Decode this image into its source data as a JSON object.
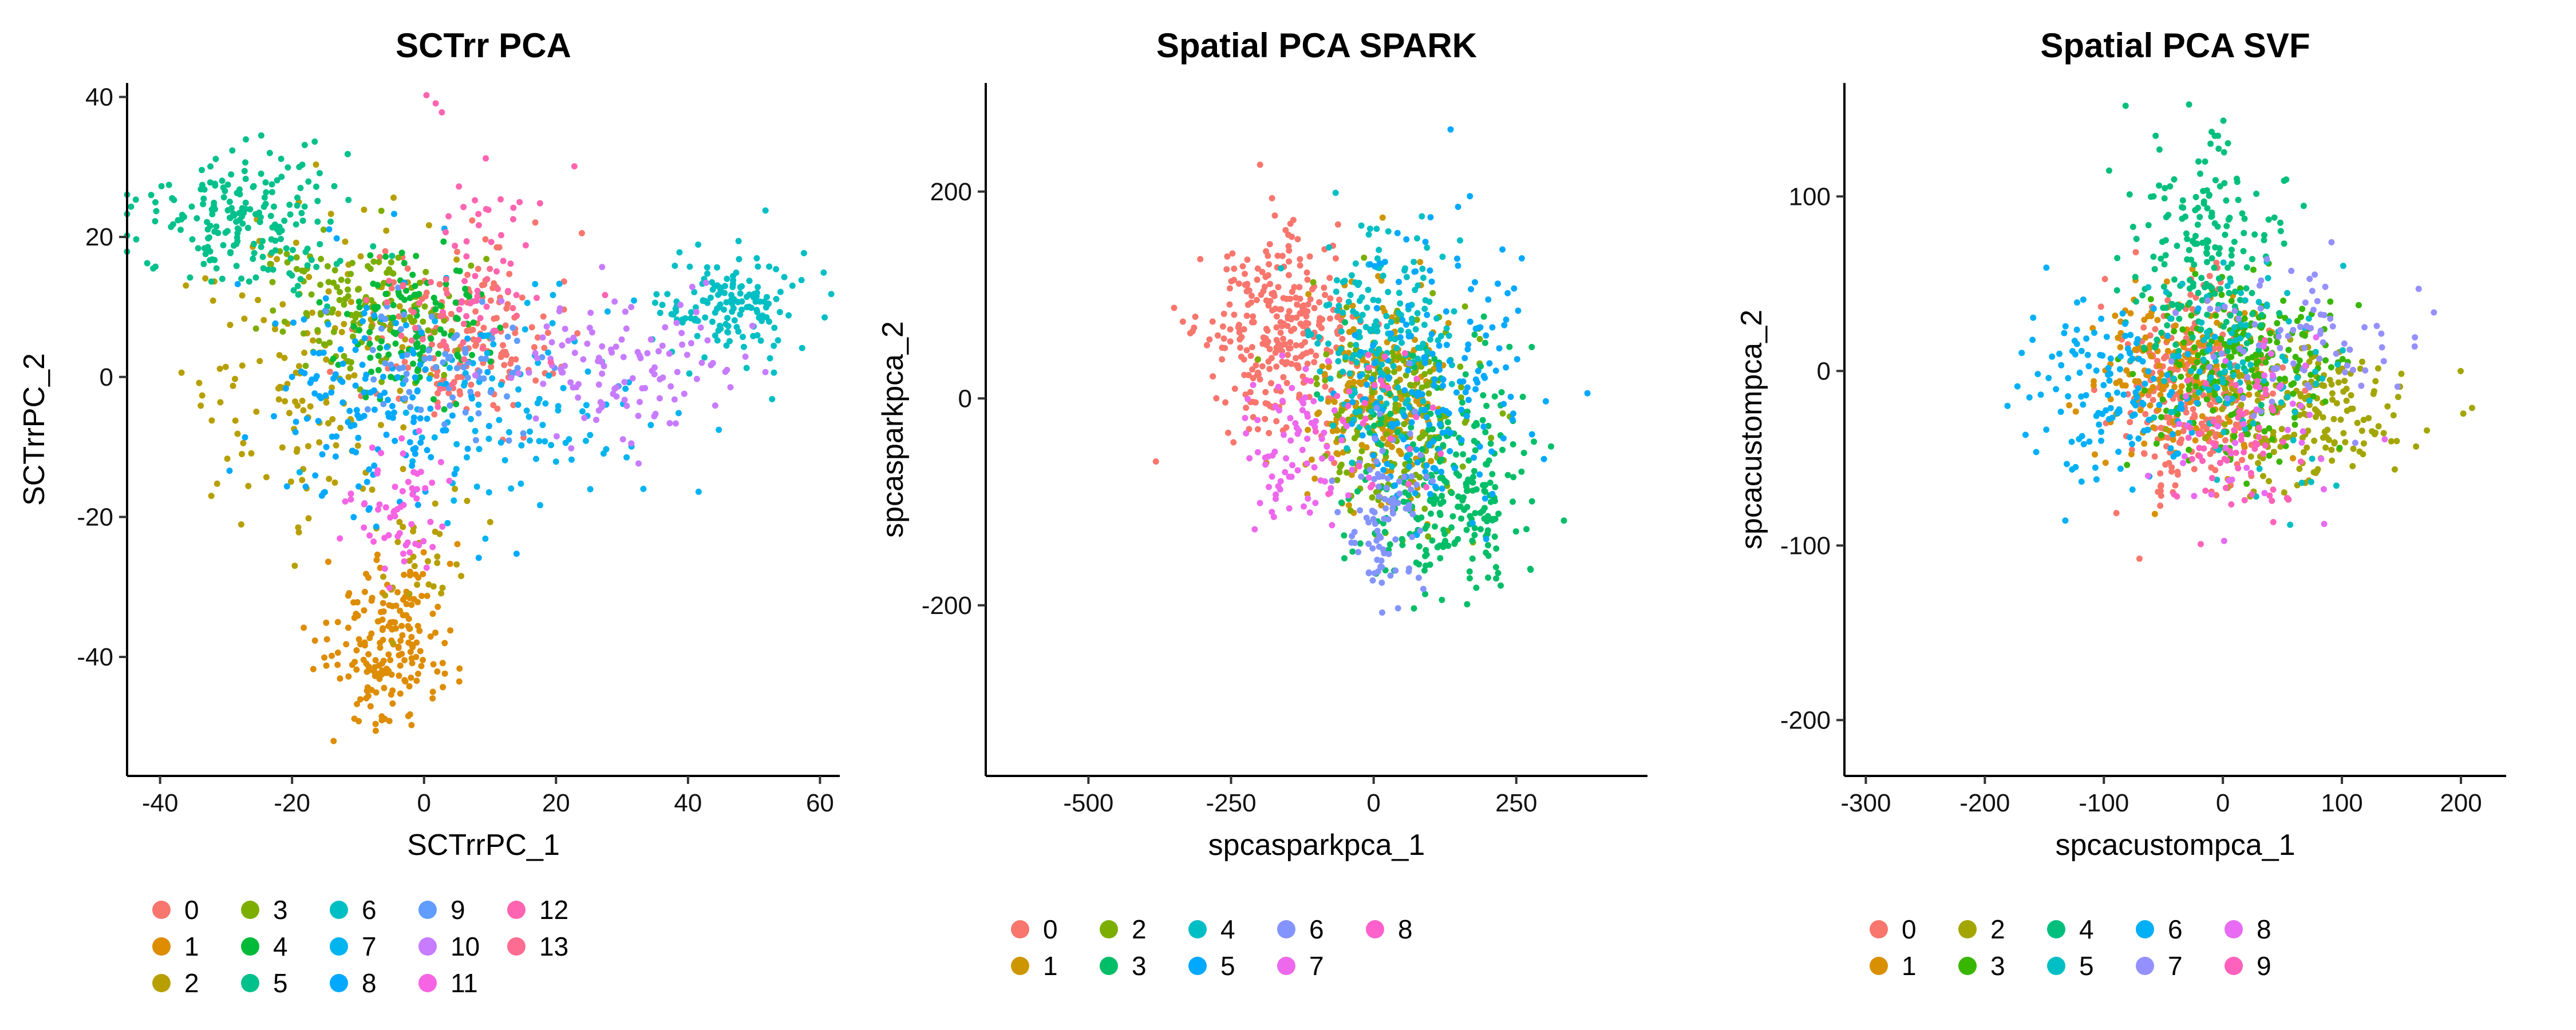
{
  "chart_data": [
    {
      "type": "scatter",
      "title": "SCTrr PCA",
      "xlabel": "SCTrrPC_1",
      "ylabel": "SCTrrPC_2",
      "xlim": [
        -45,
        63
      ],
      "ylim": [
        -57,
        42
      ],
      "xticks": [
        -40,
        -20,
        0,
        20,
        40,
        60
      ],
      "yticks": [
        -40,
        -20,
        0,
        20,
        40
      ],
      "xtick_labels": [
        "-40",
        "-20",
        "0",
        "20",
        "40",
        "60"
      ],
      "ytick_labels": [
        "-40",
        "-20",
        "0",
        "20",
        "40"
      ],
      "grid": false,
      "legend_position": "bottom",
      "legend_columns": 5,
      "series": [
        {
          "name": "0",
          "color": "#F8766D",
          "clusters": [
            {
              "cx": 5,
              "cy": 6,
              "sx": 7,
              "sy": 6,
              "n": 170
            }
          ]
        },
        {
          "name": "1",
          "color": "#DE8C00",
          "clusters": [
            {
              "cx": -5,
              "cy": -38,
              "sx": 5,
              "sy": 6,
              "n": 190
            }
          ]
        },
        {
          "name": "2",
          "color": "#B79F00",
          "clusters": [
            {
              "cx": -18,
              "cy": 2,
              "sx": 9,
              "sy": 11,
              "n": 150
            },
            {
              "cx": 0,
              "cy": -26,
              "sx": 4,
              "sy": 4,
              "n": 30
            }
          ]
        },
        {
          "name": "3",
          "color": "#7CAE00",
          "clusters": [
            {
              "cx": -10,
              "cy": 10,
              "sx": 8,
              "sy": 5,
              "n": 140
            }
          ]
        },
        {
          "name": "4",
          "color": "#00BA38",
          "clusters": [
            {
              "cx": -2,
              "cy": 7,
              "sx": 5,
              "sy": 5,
              "n": 120
            }
          ]
        },
        {
          "name": "5",
          "color": "#00C08B",
          "clusters": [
            {
              "cx": -27,
              "cy": 22,
              "sx": 8,
              "sy": 5,
              "n": 200
            }
          ]
        },
        {
          "name": "6",
          "color": "#00BFC4",
          "clusters": [
            {
              "cx": 46,
              "cy": 10,
              "sx": 6,
              "sy": 4,
              "n": 150
            }
          ]
        },
        {
          "name": "7",
          "color": "#00B4F0",
          "clusters": [
            {
              "cx": 15,
              "cy": -5,
              "sx": 9,
              "sy": 7,
              "n": 110
            }
          ]
        },
        {
          "name": "8",
          "color": "#00A9FF",
          "clusters": [
            {
              "cx": -8,
              "cy": -5,
              "sx": 8,
              "sy": 10,
              "n": 150
            }
          ]
        },
        {
          "name": "9",
          "color": "#619CFF",
          "clusters": [
            {
              "cx": 3,
              "cy": 2,
              "sx": 9,
              "sy": 5,
              "n": 70
            }
          ]
        },
        {
          "name": "10",
          "color": "#C77CFF",
          "clusters": [
            {
              "cx": 30,
              "cy": 2,
              "sx": 9,
              "sy": 5,
              "n": 120
            }
          ]
        },
        {
          "name": "11",
          "color": "#F564E3",
          "clusters": [
            {
              "cx": -5,
              "cy": -20,
              "sx": 4,
              "sy": 6,
              "n": 60
            }
          ]
        },
        {
          "name": "12",
          "color": "#FF64B0",
          "clusters": [
            {
              "cx": 10,
              "cy": 16,
              "sx": 5,
              "sy": 8,
              "n": 50
            }
          ]
        },
        {
          "name": "13",
          "color": "#FF6C91",
          "clusters": [
            {
              "cx": 4,
              "cy": 7,
              "sx": 5,
              "sy": 4,
              "n": 30
            }
          ]
        }
      ]
    },
    {
      "type": "scatter",
      "title": "Spatial PCA SPARK",
      "xlabel": "spcasparkpca_1",
      "ylabel": "spcasparkpca_2",
      "xlim": [
        -680,
        480
      ],
      "ylim": [
        -365,
        305
      ],
      "xticks": [
        -500,
        -250,
        0,
        250
      ],
      "yticks": [
        -200,
        0,
        200
      ],
      "xtick_labels": [
        "-500",
        "-250",
        "0",
        "250"
      ],
      "ytick_labels": [
        "-200",
        "0",
        "200"
      ],
      "grid": false,
      "legend_position": "bottom",
      "legend_columns": 5,
      "series": [
        {
          "name": "0",
          "color": "#F8766D",
          "clusters": [
            {
              "cx": -170,
              "cy": 60,
              "sx": 65,
              "sy": 45,
              "n": 300
            }
          ]
        },
        {
          "name": "1",
          "color": "#CD9600",
          "clusters": [
            {
              "cx": 10,
              "cy": 0,
              "sx": 60,
              "sy": 50,
              "n": 250
            }
          ]
        },
        {
          "name": "2",
          "color": "#7CAE00",
          "clusters": [
            {
              "cx": 40,
              "cy": -20,
              "sx": 70,
              "sy": 50,
              "n": 200
            }
          ]
        },
        {
          "name": "3",
          "color": "#00BE67",
          "clusters": [
            {
              "cx": 130,
              "cy": -80,
              "sx": 80,
              "sy": 60,
              "n": 280
            }
          ]
        },
        {
          "name": "4",
          "color": "#00BFC4",
          "clusters": [
            {
              "cx": 10,
              "cy": 60,
              "sx": 60,
              "sy": 50,
              "n": 180
            }
          ]
        },
        {
          "name": "5",
          "color": "#00A9FF",
          "clusters": [
            {
              "cx": 100,
              "cy": 20,
              "sx": 90,
              "sy": 70,
              "n": 180
            }
          ]
        },
        {
          "name": "6",
          "color": "#8494FF",
          "clusters": [
            {
              "cx": 20,
              "cy": -110,
              "sx": 35,
              "sy": 45,
              "n": 90
            }
          ]
        },
        {
          "name": "7",
          "color": "#ED68ED",
          "clusters": [
            {
              "cx": -130,
              "cy": -50,
              "sx": 50,
              "sy": 40,
              "n": 80
            }
          ]
        },
        {
          "name": "8",
          "color": "#FF61CC",
          "clusters": [
            {
              "cx": 0,
              "cy": -20,
              "sx": 60,
              "sy": 45,
              "n": 30
            }
          ]
        }
      ]
    },
    {
      "type": "scatter",
      "title": "Spatial PCA SVF",
      "xlabel": "spcacustompca_1",
      "ylabel": "spcacustompca_2",
      "xlim": [
        -318,
        238
      ],
      "ylim": [
        -232,
        165
      ],
      "xticks": [
        -300,
        -200,
        -100,
        0,
        100,
        200
      ],
      "yticks": [
        -200,
        -100,
        0,
        100
      ],
      "xtick_labels": [
        "-300",
        "-200",
        "-100",
        "0",
        "100",
        "200"
      ],
      "ytick_labels": [
        "-200",
        "-100",
        "0",
        "100"
      ],
      "grid": false,
      "legend_position": "bottom",
      "legend_columns": 5,
      "series": [
        {
          "name": "0",
          "color": "#F8766D",
          "clusters": [
            {
              "cx": -25,
              "cy": -10,
              "sx": 30,
              "sy": 28,
              "n": 280
            }
          ]
        },
        {
          "name": "1",
          "color": "#D89000",
          "clusters": [
            {
              "cx": -40,
              "cy": 0,
              "sx": 35,
              "sy": 25,
              "n": 160
            }
          ]
        },
        {
          "name": "2",
          "color": "#A3A500",
          "clusters": [
            {
              "cx": 70,
              "cy": -25,
              "sx": 45,
              "sy": 22,
              "n": 200
            }
          ]
        },
        {
          "name": "3",
          "color": "#39B600",
          "clusters": [
            {
              "cx": 20,
              "cy": 5,
              "sx": 40,
              "sy": 25,
              "n": 220
            }
          ]
        },
        {
          "name": "4",
          "color": "#00BF7D",
          "clusters": [
            {
              "cx": -15,
              "cy": 60,
              "sx": 30,
              "sy": 35,
              "n": 200
            }
          ]
        },
        {
          "name": "5",
          "color": "#00BFC4",
          "clusters": [
            {
              "cx": 20,
              "cy": 0,
              "sx": 40,
              "sy": 30,
              "n": 100
            }
          ]
        },
        {
          "name": "6",
          "color": "#00B0F6",
          "clusters": [
            {
              "cx": -90,
              "cy": -10,
              "sx": 40,
              "sy": 25,
              "n": 140
            }
          ]
        },
        {
          "name": "7",
          "color": "#9590FF",
          "clusters": [
            {
              "cx": 60,
              "cy": 15,
              "sx": 50,
              "sy": 25,
              "n": 80
            }
          ]
        },
        {
          "name": "8",
          "color": "#E76BF3",
          "clusters": [
            {
              "cx": 30,
              "cy": -30,
              "sx": 40,
              "sy": 25,
              "n": 40
            }
          ]
        },
        {
          "name": "9",
          "color": "#FF62BC",
          "clusters": [
            {
              "cx": 10,
              "cy": -40,
              "sx": 25,
              "sy": 25,
              "n": 60
            }
          ]
        }
      ]
    }
  ]
}
